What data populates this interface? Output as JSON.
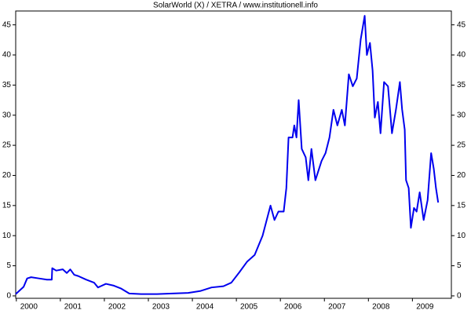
{
  "chart_data": {
    "type": "line",
    "title": "SolarWorld (X) / XETRA / www.institutionell.info",
    "x": [
      1999.7,
      1999.79,
      1999.88,
      1999.96,
      2000.05,
      2000.23,
      2000.41,
      2000.52,
      2000.53,
      2000.62,
      2000.77,
      2000.86,
      2000.94,
      2001.03,
      2001.12,
      2001.3,
      2001.48,
      2001.57,
      2001.75,
      2001.93,
      2002.1,
      2002.28,
      2002.55,
      2002.91,
      2003.26,
      2003.62,
      2003.89,
      2004.15,
      2004.42,
      2004.6,
      2004.78,
      2004.96,
      2005.13,
      2005.31,
      2005.49,
      2005.58,
      2005.67,
      2005.79,
      2005.85,
      2005.9,
      2005.99,
      2006.03,
      2006.08,
      2006.13,
      2006.2,
      2006.29,
      2006.35,
      2006.42,
      2006.51,
      2006.65,
      2006.74,
      2006.83,
      2006.92,
      2007.01,
      2007.11,
      2007.18,
      2007.27,
      2007.36,
      2007.45,
      2007.54,
      2007.63,
      2007.68,
      2007.75,
      2007.81,
      2007.86,
      2007.93,
      2007.99,
      2008.07,
      2008.16,
      2008.25,
      2008.34,
      2008.43,
      2008.48,
      2008.54,
      2008.57,
      2008.63,
      2008.68,
      2008.75,
      2008.81,
      2008.88,
      2008.97,
      2009.06,
      2009.14,
      2009.2,
      2009.25,
      2009.3
    ],
    "series": [
      {
        "color": "#0000ee",
        "values": [
          0.3,
          0.9,
          1.5,
          2.9,
          3.1,
          2.9,
          2.7,
          2.7,
          4.6,
          4.2,
          4.4,
          3.8,
          4.4,
          3.5,
          3.3,
          2.7,
          2.2,
          1.4,
          2.0,
          1.7,
          1.2,
          0.4,
          0.3,
          0.3,
          0.4,
          0.5,
          0.8,
          1.4,
          1.6,
          2.2,
          3.9,
          5.7,
          6.8,
          10,
          15,
          12.6,
          14,
          14,
          17.9,
          26.3,
          26.3,
          28.3,
          26.3,
          32.5,
          24.4,
          23,
          19.2,
          24.4,
          19.2,
          22.4,
          23.7,
          26.3,
          30.9,
          28.3,
          30.9,
          28.3,
          36.8,
          34.8,
          36.1,
          42.6,
          46.5,
          40,
          42,
          37.4,
          29.6,
          32.2,
          27,
          35.5,
          34.8,
          27,
          30.9,
          35.5,
          31,
          27.6,
          19.2,
          17.9,
          11.3,
          14.6,
          14,
          17.2,
          12.6,
          15.9,
          23.7,
          21.1,
          17.9,
          15.5
        ]
      }
    ],
    "xlim": [
      1999.7,
      2009.6
    ],
    "xticks": [
      2000,
      2001,
      2002,
      2003,
      2004,
      2005,
      2006,
      2007,
      2008,
      2009
    ],
    "ylim": [
      -0.4,
      47.3
    ],
    "yticks": [
      0,
      5,
      10,
      15,
      20,
      25,
      30,
      35,
      40,
      45
    ],
    "grid": false
  }
}
